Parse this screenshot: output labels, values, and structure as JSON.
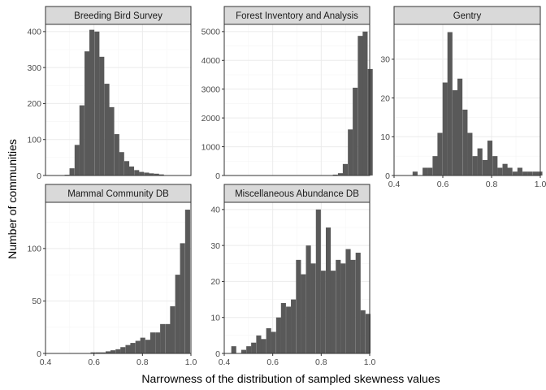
{
  "figure": {
    "xlabel": "Narrowness of the distribution of sampled skewness values",
    "ylabel": "Number of communities"
  },
  "colors": {
    "bar": "#595959",
    "strip_fill": "#d9d9d9",
    "strip_border": "#333333",
    "panel_border": "#333333",
    "grid_major": "#ebebeb",
    "grid_minor": "#f5f5f5",
    "tick_text": "#4d4d4d"
  },
  "chart_data": [
    {
      "type": "bar",
      "title": "Breeding Bird Survey",
      "xlim": [
        0.4,
        1.0
      ],
      "ylim": [
        0,
        420
      ],
      "xticks": [
        0.4,
        0.6,
        0.8,
        1.0
      ],
      "xtick_labels": [
        "0.4",
        "0.6",
        "0.8",
        "1.0"
      ],
      "show_xticks": false,
      "yticks": [
        0,
        100,
        200,
        300,
        400
      ],
      "ytick_labels": [
        "0",
        "100",
        "200",
        "300",
        "400"
      ],
      "bin_width": 0.0205,
      "bin_starts": [
        0.458,
        0.479,
        0.499,
        0.52,
        0.54,
        0.561,
        0.581,
        0.602,
        0.622,
        0.643,
        0.663,
        0.684,
        0.704,
        0.725,
        0.745,
        0.766,
        0.786,
        0.807,
        0.827,
        0.848,
        0.868,
        0.889,
        0.909,
        0.93,
        0.95
      ],
      "values": [
        1,
        2,
        20,
        85,
        195,
        345,
        405,
        400,
        330,
        255,
        190,
        115,
        65,
        40,
        25,
        15,
        10,
        8,
        6,
        5,
        3,
        1,
        1,
        0,
        1
      ]
    },
    {
      "type": "bar",
      "title": "Forest Inventory and Analysis",
      "xlim": [
        0.4,
        1.0
      ],
      "ylim": [
        0,
        5250
      ],
      "xticks": [
        0.4,
        0.6,
        0.8,
        1.0
      ],
      "xtick_labels": [
        "0.4",
        "0.6",
        "0.8",
        "1.0"
      ],
      "show_xticks": false,
      "yticks": [
        0,
        1000,
        2000,
        3000,
        4000,
        5000
      ],
      "ytick_labels": [
        "0",
        "1000",
        "2000",
        "3000",
        "4000",
        "5000"
      ],
      "bin_width": 0.0205,
      "bin_starts": [
        0.828,
        0.848,
        0.869,
        0.889,
        0.91,
        0.93,
        0.951,
        0.971,
        0.992
      ],
      "values": [
        10,
        30,
        80,
        400,
        1600,
        3050,
        4850,
        5000,
        3700
      ]
    },
    {
      "type": "bar",
      "title": "Gentry",
      "xlim": [
        0.4,
        1.0
      ],
      "ylim": [
        0,
        39
      ],
      "xticks": [
        0.4,
        0.6,
        0.8,
        1.0
      ],
      "xtick_labels": [
        "0.4",
        "0.6",
        "0.8",
        "1.0"
      ],
      "show_xticks": true,
      "yticks": [
        0,
        10,
        20,
        30
      ],
      "ytick_labels": [
        "0",
        "10",
        "20",
        "30"
      ],
      "bin_width": 0.0205,
      "bin_starts": [
        0.476,
        0.496,
        0.517,
        0.537,
        0.558,
        0.578,
        0.599,
        0.619,
        0.64,
        0.66,
        0.681,
        0.701,
        0.722,
        0.742,
        0.763,
        0.783,
        0.804,
        0.824,
        0.845,
        0.865,
        0.886,
        0.906,
        0.927,
        0.947,
        0.968,
        0.988
      ],
      "values": [
        1,
        0,
        2,
        2,
        5,
        11,
        24,
        37,
        22,
        25,
        17,
        11,
        5,
        7,
        4,
        9,
        5,
        2,
        3,
        2,
        1,
        2,
        1,
        1,
        1,
        1
      ]
    },
    {
      "type": "bar",
      "title": "Mammal Community DB",
      "xlim": [
        0.4,
        1.0
      ],
      "ylim": [
        0,
        144
      ],
      "xticks": [
        0.4,
        0.6,
        0.8,
        1.0
      ],
      "xtick_labels": [
        "0.4",
        "0.6",
        "0.8",
        "1.0"
      ],
      "show_xticks": true,
      "yticks": [
        0,
        50,
        100
      ],
      "ytick_labels": [
        "0",
        "50",
        "100"
      ],
      "bin_width": 0.0205,
      "bin_starts": [
        0.586,
        0.607,
        0.627,
        0.648,
        0.668,
        0.689,
        0.709,
        0.73,
        0.75,
        0.771,
        0.791,
        0.812,
        0.832,
        0.853,
        0.873,
        0.894,
        0.914,
        0.935,
        0.955,
        0.976
      ],
      "values": [
        1,
        1,
        1,
        2,
        3,
        4,
        6,
        8,
        10,
        12,
        15,
        13,
        20,
        20,
        28,
        28,
        45,
        75,
        105,
        137
      ]
    },
    {
      "type": "bar",
      "title": "Miscellaneous Abundance DB",
      "xlim": [
        0.4,
        1.0
      ],
      "ylim": [
        0,
        42
      ],
      "xticks": [
        0.4,
        0.6,
        0.8,
        1.0
      ],
      "xtick_labels": [
        "0.4",
        "0.6",
        "0.8",
        "1.0"
      ],
      "show_xticks": true,
      "yticks": [
        0,
        10,
        20,
        30,
        40
      ],
      "ytick_labels": [
        "0",
        "10",
        "20",
        "30",
        "40"
      ],
      "bin_width": 0.0205,
      "bin_starts": [
        0.429,
        0.45,
        0.47,
        0.491,
        0.511,
        0.532,
        0.552,
        0.573,
        0.593,
        0.614,
        0.634,
        0.655,
        0.675,
        0.696,
        0.716,
        0.737,
        0.757,
        0.778,
        0.798,
        0.819,
        0.839,
        0.86,
        0.88,
        0.901,
        0.921,
        0.942,
        0.962,
        0.983
      ],
      "values": [
        2,
        0,
        1,
        2,
        3,
        5,
        4,
        7,
        6,
        10,
        14,
        13,
        15,
        26,
        22,
        30,
        25,
        40,
        23,
        35,
        23,
        26,
        25,
        29,
        26,
        28,
        12,
        11
      ]
    }
  ]
}
